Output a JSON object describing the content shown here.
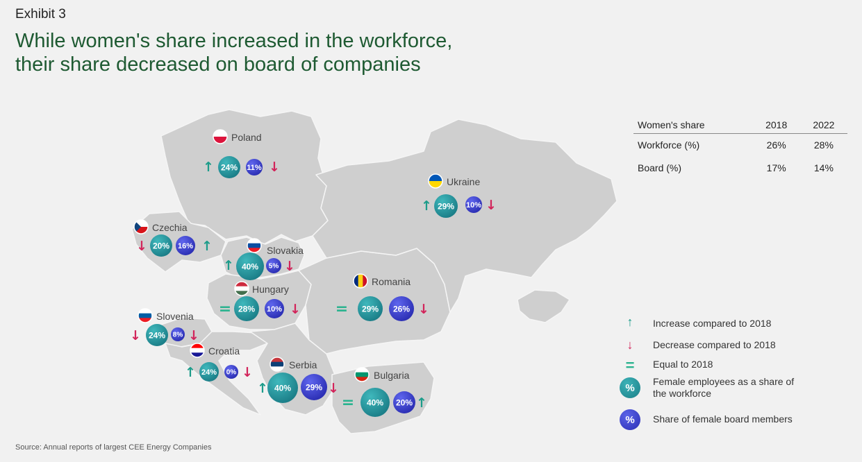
{
  "exhibit_label": "Exhibit 3",
  "title_line1": "While women's share increased in the workforce,",
  "title_line2": "their share decreased on board of companies",
  "source": "Source: Annual reports of largest CEE Energy Companies",
  "colors": {
    "workforce": "#2a97a0",
    "board": "#3b40cc",
    "increase": "#1c9c8a",
    "decrease": "#d2245a",
    "equal": "#2bb38f",
    "title": "#1e5a32"
  },
  "summary_table": {
    "headers": [
      "Women's share",
      "2018",
      "2022"
    ],
    "rows": [
      {
        "label": "Workforce (%)",
        "v2018": "26%",
        "v2022": "28%"
      },
      {
        "label": "Board (%)",
        "v2018": "17%",
        "v2022": "14%"
      }
    ]
  },
  "legend": {
    "increase": "Increase compared to 2018",
    "decrease": "Decrease compared to 2018",
    "equal": "Equal to 2018",
    "workforce_line1": "Female employees as a share of",
    "workforce_line2": "the workforce",
    "board": "Share of female board members",
    "circle_symbol": "%"
  },
  "countries": [
    {
      "name": "Poland",
      "workforce": "24%",
      "workforce_trend": "increase",
      "board": "11%",
      "board_trend": "decrease"
    },
    {
      "name": "Ukraine",
      "workforce": "29%",
      "workforce_trend": "increase",
      "board": "10%",
      "board_trend": "decrease"
    },
    {
      "name": "Czechia",
      "workforce": "20%",
      "workforce_trend": "decrease",
      "board": "16%",
      "board_trend": "increase"
    },
    {
      "name": "Slovakia",
      "workforce": "40%",
      "workforce_trend": "increase",
      "board": "5%",
      "board_trend": "decrease"
    },
    {
      "name": "Hungary",
      "workforce": "28%",
      "workforce_trend": "equal",
      "board": "10%",
      "board_trend": "decrease"
    },
    {
      "name": "Romania",
      "workforce": "29%",
      "workforce_trend": "equal",
      "board": "26%",
      "board_trend": "decrease"
    },
    {
      "name": "Slovenia",
      "workforce": "24%",
      "workforce_trend": "decrease",
      "board": "8%",
      "board_trend": "decrease"
    },
    {
      "name": "Croatia",
      "workforce": "24%",
      "workforce_trend": "increase",
      "board": "0%",
      "board_trend": "decrease"
    },
    {
      "name": "Serbia",
      "workforce": "40%",
      "workforce_trend": "increase",
      "board": "29%",
      "board_trend": "decrease"
    },
    {
      "name": "Bulgaria",
      "workforce": "40%",
      "workforce_trend": "equal",
      "board": "20%",
      "board_trend": "increase"
    }
  ]
}
